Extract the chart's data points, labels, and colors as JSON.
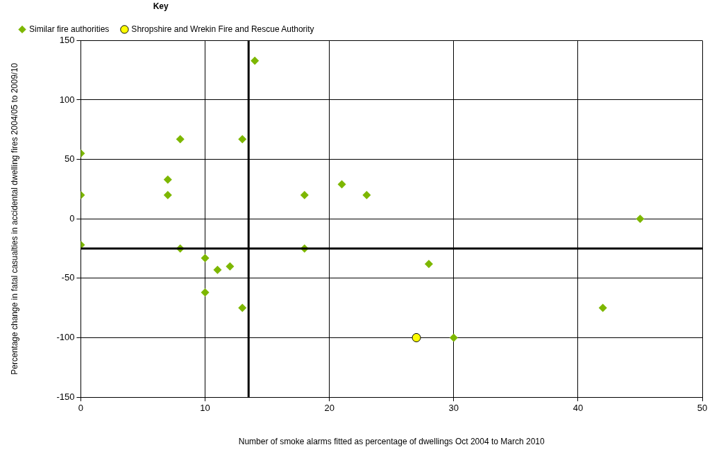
{
  "chart_data": {
    "type": "scatter",
    "xlabel": "Number of smoke alarms fitted as percentage of dwellings Oct 2004 to March 2010",
    "ylabel": "Percentage change in fatal casualties in accidental dwelling fires 2004/05 to 2009/10",
    "legend_title": "Key",
    "series": [
      {
        "name": "Similar fire authorities",
        "color": "#7db700",
        "marker": "diamond",
        "x": [
          0,
          0,
          0,
          7,
          7,
          8,
          8,
          10,
          10,
          11,
          12,
          13,
          13,
          14,
          18,
          18,
          21,
          23,
          28,
          30,
          42,
          45
        ],
        "values": [
          55,
          20,
          -22,
          33,
          20,
          67,
          -25,
          -33,
          -62,
          -43,
          -40,
          67,
          -75,
          133,
          20,
          -25,
          29,
          20,
          -38,
          -100,
          -75,
          0
        ]
      },
      {
        "name": "Shropshire and Wrekin Fire and Rescue Authority",
        "color": "#ffff00",
        "marker": "circle",
        "x": [
          27
        ],
        "values": [
          -100
        ]
      }
    ],
    "xlim": [
      0,
      50
    ],
    "xticks": [
      0,
      10,
      20,
      30,
      40,
      50
    ],
    "ylim": [
      -150,
      150
    ],
    "yticks": [
      -150,
      -100,
      -50,
      0,
      50,
      100,
      150
    ],
    "ref_lines": [
      {
        "axis": "x",
        "value": 13.5,
        "color": "#000000"
      },
      {
        "axis": "y",
        "value": -25,
        "color": "#000000"
      }
    ],
    "grid": true,
    "legend": "top left"
  }
}
